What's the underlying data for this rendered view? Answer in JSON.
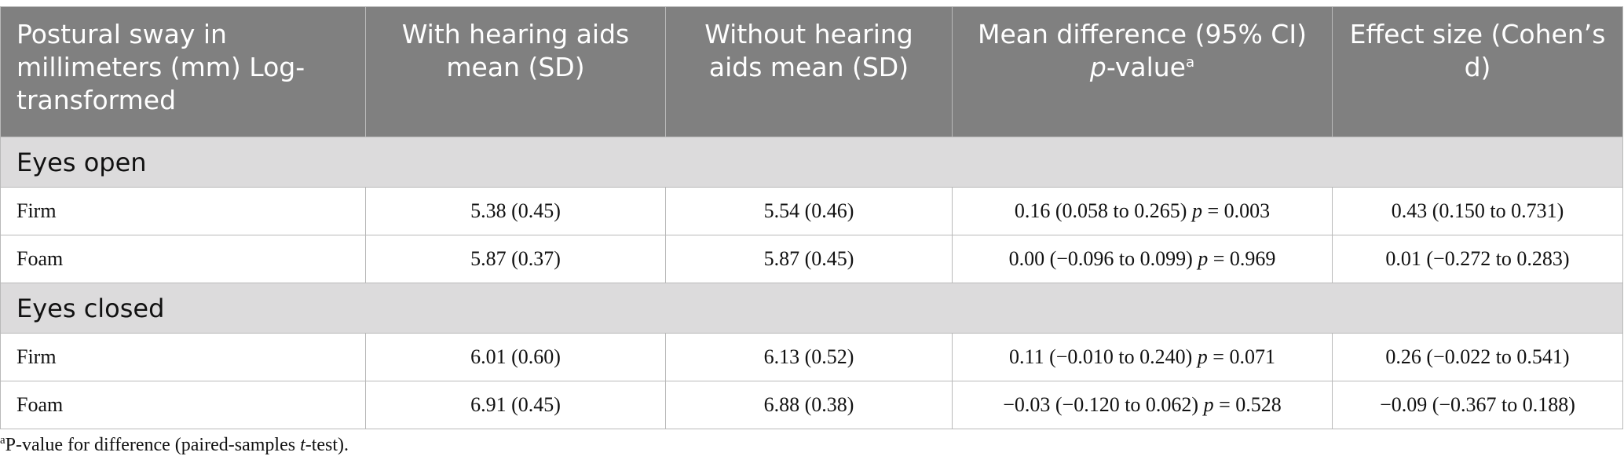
{
  "header": {
    "col0": "Postural sway in millimeters (mm) Log-transformed",
    "col1": "With hearing aids mean (SD)",
    "col2": "Without hearing aids mean (SD)",
    "col3_line1": "Mean difference (95% CI)",
    "col3_p": "p",
    "col3_rest": "-value",
    "col3_sup": "a",
    "col4": "Effect size (Cohen’s d)"
  },
  "sections": [
    {
      "label": "Eyes open",
      "rows": [
        {
          "surface": "Firm",
          "with": "5.38 (0.45)",
          "without": "5.54 (0.46)",
          "diff_ci": "0.16 (0.058 to 0.265)",
          "p_label": "p",
          "p_value": " = 0.003",
          "effect": "0.43 (0.150 to 0.731)"
        },
        {
          "surface": "Foam",
          "with": "5.87 (0.37)",
          "without": "5.87 (0.45)",
          "diff_ci": "0.00 (−0.096 to 0.099)",
          "p_label": "p",
          "p_value": " = 0.969",
          "effect": "0.01 (−0.272 to 0.283)"
        }
      ]
    },
    {
      "label": "Eyes closed",
      "rows": [
        {
          "surface": "Firm",
          "with": "6.01 (0.60)",
          "without": "6.13 (0.52)",
          "diff_ci": "0.11 (−0.010 to 0.240)",
          "p_label": "p",
          "p_value": " = 0.071",
          "effect": "0.26 (−0.022 to 0.541)"
        },
        {
          "surface": "Foam",
          "with": "6.91 (0.45)",
          "without": "6.88 (0.38)",
          "diff_ci": "−0.03 (−0.120 to 0.062)",
          "p_label": "p",
          "p_value": " = 0.528",
          "effect": "−0.09 (−0.367 to 0.188)"
        }
      ]
    }
  ],
  "footnote": {
    "sup": "a",
    "text_before": "P-value for difference (paired-samples ",
    "italic": "t",
    "text_after": "-test)."
  }
}
